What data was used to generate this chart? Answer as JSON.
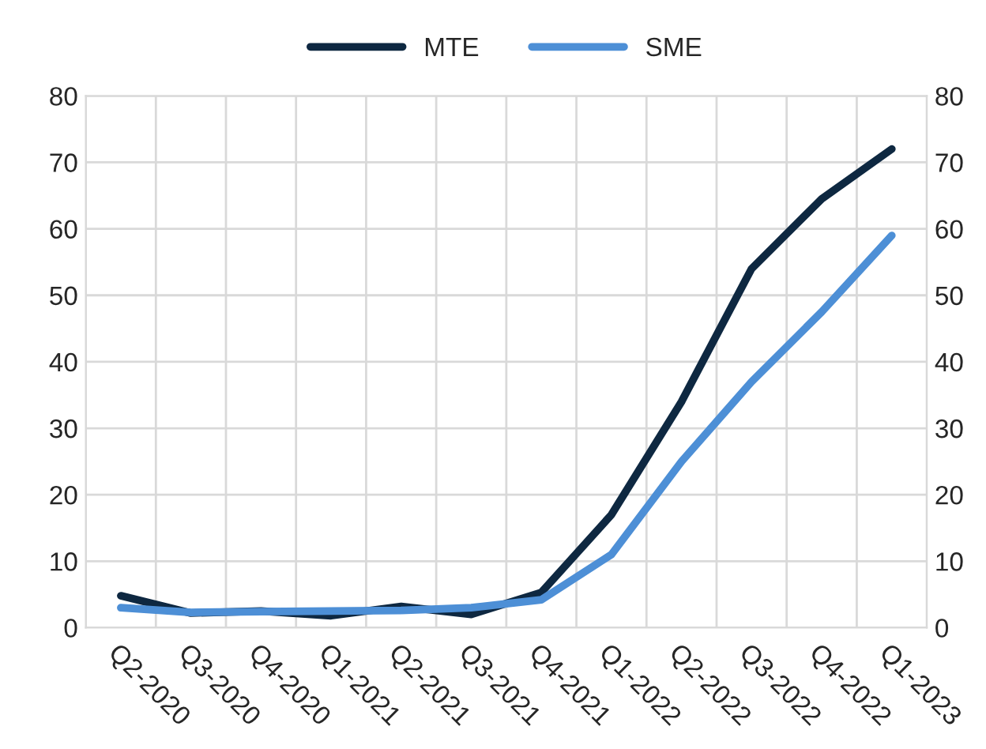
{
  "chart_data": {
    "type": "line",
    "categories": [
      "Q2-2020",
      "Q3-2020",
      "Q4-2020",
      "Q1-2021",
      "Q2-2021",
      "Q3-2021",
      "Q4-2021",
      "Q1-2022",
      "Q2-2022",
      "Q3-2022",
      "Q4-2022",
      "Q1-2023"
    ],
    "series": [
      {
        "name": "MTE",
        "color": "#0e2841",
        "values": [
          4.8,
          2.2,
          2.5,
          1.8,
          3.2,
          2.0,
          5.3,
          17,
          34,
          54,
          64.5,
          72
        ]
      },
      {
        "name": "SME",
        "color": "#4d8fd6",
        "values": [
          3.0,
          2.3,
          2.4,
          2.5,
          2.6,
          3.0,
          4.2,
          11,
          25,
          37,
          47.5,
          59
        ]
      }
    ],
    "ylim": [
      0,
      80
    ],
    "yticks": [
      0,
      10,
      20,
      30,
      40,
      50,
      60,
      70,
      80
    ],
    "y2lim": [
      0,
      80
    ],
    "y2ticks": [
      0,
      10,
      20,
      30,
      40,
      50,
      60,
      70,
      80
    ],
    "grid": true,
    "legend": "top",
    "marker": "none",
    "line_style": "solid"
  }
}
